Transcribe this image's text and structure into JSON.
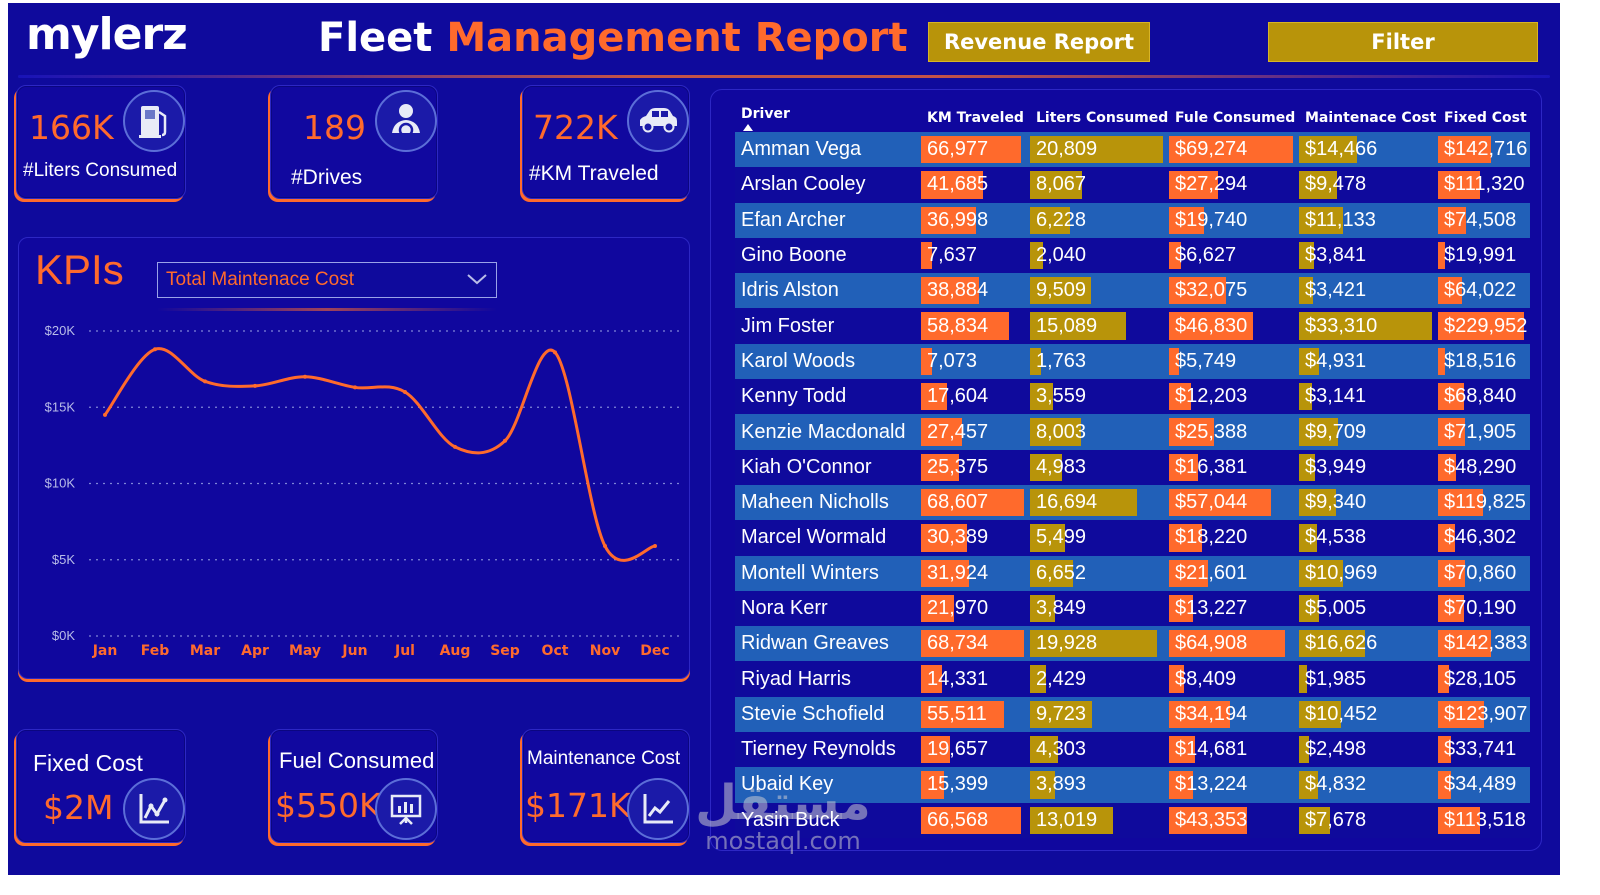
{
  "header": {
    "logo_main": "mylerz",
    "title_white": "Fleet",
    "title_orange": "Management Report",
    "revenue_button": "Revenue Report",
    "filter_button": "Filter"
  },
  "cards": {
    "liters": {
      "value": "166K",
      "label": "#Liters Consumed",
      "icon": "fuel-pump-icon"
    },
    "drives": {
      "value": "189",
      "label": "#Drives",
      "icon": "driver-icon"
    },
    "km": {
      "value": "722K",
      "label": "#KM Traveled",
      "icon": "car-icon"
    },
    "fixed_cost": {
      "value": "$2M",
      "label": "Fixed Cost",
      "icon": "line-chart-icon"
    },
    "fuel_consumed": {
      "value": "$550K",
      "label": "Fuel Consumed",
      "icon": "presentation-chart-icon"
    },
    "maintenance_cost": {
      "value": "$171K",
      "label": "Maintenance Cost",
      "icon": "trend-chart-icon"
    }
  },
  "kpi": {
    "title": "KPIs",
    "selected": "Total Maintenace Cost"
  },
  "chart_data": {
    "type": "line",
    "title": "",
    "xlabel": "",
    "ylabel": "",
    "categories": [
      "Jan",
      "Feb",
      "Mar",
      "Apr",
      "May",
      "Jun",
      "Jul",
      "Aug",
      "Sep",
      "Oct",
      "Nov",
      "Dec"
    ],
    "yticks": [
      "$0K",
      "$5K",
      "$10K",
      "$15K",
      "$20K"
    ],
    "ylim": [
      0,
      20000
    ],
    "grid": true,
    "series": [
      {
        "values": [
          14500,
          18800,
          16700,
          16400,
          17000,
          16300,
          16000,
          12400,
          12800,
          18600,
          5900,
          5900
        ]
      }
    ],
    "colors": {
      "line": "#ff6a2c",
      "grid": "#7f86d8",
      "tick": "#b9bde8",
      "month": "#ff6a2c"
    }
  },
  "table": {
    "columns": [
      "Driver",
      "KM Traveled",
      "Liters Consumed",
      "Fule Consumed",
      "Maintenace Cost",
      "Fixed Cost"
    ],
    "max": [
      68734,
      20809,
      69274,
      33310,
      229952
    ],
    "bar_colors": [
      "#ff6a2c",
      "#b8940a",
      "#ff6a2c",
      "#b8940a",
      "#ff6a2c"
    ],
    "rows": [
      {
        "name": "Amman Vega",
        "cells": [
          "66,977",
          "20,809",
          "$69,274",
          "$14,466",
          "$142,716"
        ],
        "vals": [
          66977,
          20809,
          69274,
          14466,
          142716
        ]
      },
      {
        "name": "Arslan Cooley",
        "cells": [
          "41,685",
          "8,067",
          "$27,294",
          "$9,478",
          "$111,320"
        ],
        "vals": [
          41685,
          8067,
          27294,
          9478,
          111320
        ]
      },
      {
        "name": "Efan Archer",
        "cells": [
          "36,998",
          "6,228",
          "$19,740",
          "$11,133",
          "$74,508"
        ],
        "vals": [
          36998,
          6228,
          19740,
          11133,
          74508
        ]
      },
      {
        "name": "Gino Boone",
        "cells": [
          "7,637",
          "2,040",
          "$6,627",
          "$3,841",
          "$19,991"
        ],
        "vals": [
          7637,
          2040,
          6627,
          3841,
          19991
        ]
      },
      {
        "name": "Idris Alston",
        "cells": [
          "38,884",
          "9,509",
          "$32,075",
          "$3,421",
          "$64,022"
        ],
        "vals": [
          38884,
          9509,
          32075,
          3421,
          64022
        ]
      },
      {
        "name": "Jim Foster",
        "cells": [
          "58,834",
          "15,089",
          "$46,830",
          "$33,310",
          "$229,952"
        ],
        "vals": [
          58834,
          15089,
          46830,
          33310,
          229952
        ]
      },
      {
        "name": "Karol Woods",
        "cells": [
          "7,073",
          "1,763",
          "$5,749",
          "$4,931",
          "$18,516"
        ],
        "vals": [
          7073,
          1763,
          5749,
          4931,
          18516
        ]
      },
      {
        "name": "Kenny Todd",
        "cells": [
          "17,604",
          "3,559",
          "$12,203",
          "$3,141",
          "$68,840"
        ],
        "vals": [
          17604,
          3559,
          12203,
          3141,
          68840
        ]
      },
      {
        "name": "Kenzie Macdonald",
        "cells": [
          "27,457",
          "8,003",
          "$25,388",
          "$9,709",
          "$71,905"
        ],
        "vals": [
          27457,
          8003,
          25388,
          9709,
          71905
        ]
      },
      {
        "name": "Kiah O'Connor",
        "cells": [
          "25,375",
          "4,983",
          "$16,381",
          "$3,949",
          "$48,290"
        ],
        "vals": [
          25375,
          4983,
          16381,
          3949,
          48290
        ]
      },
      {
        "name": "Maheen Nicholls",
        "cells": [
          "68,607",
          "16,694",
          "$57,044",
          "$9,340",
          "$119,825"
        ],
        "vals": [
          68607,
          16694,
          57044,
          9340,
          119825
        ]
      },
      {
        "name": "Marcel Wormald",
        "cells": [
          "30,389",
          "5,499",
          "$18,220",
          "$4,538",
          "$46,302"
        ],
        "vals": [
          30389,
          5499,
          18220,
          4538,
          46302
        ]
      },
      {
        "name": "Montell Winters",
        "cells": [
          "31,924",
          "6,652",
          "$21,601",
          "$10,969",
          "$70,860"
        ],
        "vals": [
          31924,
          6652,
          21601,
          10969,
          70860
        ]
      },
      {
        "name": "Nora Kerr",
        "cells": [
          "21,970",
          "3,849",
          "$13,227",
          "$5,005",
          "$70,190"
        ],
        "vals": [
          21970,
          3849,
          13227,
          5005,
          70190
        ]
      },
      {
        "name": "Ridwan Greaves",
        "cells": [
          "68,734",
          "19,928",
          "$64,908",
          "$16,626",
          "$142,383"
        ],
        "vals": [
          68734,
          19928,
          64908,
          16626,
          142383
        ]
      },
      {
        "name": "Riyad Harris",
        "cells": [
          "14,331",
          "2,429",
          "$8,409",
          "$1,985",
          "$28,105"
        ],
        "vals": [
          14331,
          2429,
          8409,
          1985,
          28105
        ]
      },
      {
        "name": "Stevie Schofield",
        "cells": [
          "55,511",
          "9,723",
          "$34,194",
          "$10,452",
          "$123,907"
        ],
        "vals": [
          55511,
          9723,
          34194,
          10452,
          123907
        ]
      },
      {
        "name": "Tierney Reynolds",
        "cells": [
          "19,657",
          "4,303",
          "$14,681",
          "$2,498",
          "$33,741"
        ],
        "vals": [
          19657,
          4303,
          14681,
          2498,
          33741
        ]
      },
      {
        "name": "Ubaid Key",
        "cells": [
          "15,399",
          "3,893",
          "$13,224",
          "$4,832",
          "$34,489"
        ],
        "vals": [
          15399,
          3893,
          13224,
          4832,
          34489
        ]
      },
      {
        "name": "Yasin Buck",
        "cells": [
          "66,568",
          "13,019",
          "$43,353",
          "$7,678",
          "$113,518"
        ],
        "vals": [
          66568,
          13019,
          43353,
          7678,
          113518
        ]
      }
    ]
  },
  "watermark": {
    "arabic": "مستقل",
    "english": "mostaql.com"
  }
}
